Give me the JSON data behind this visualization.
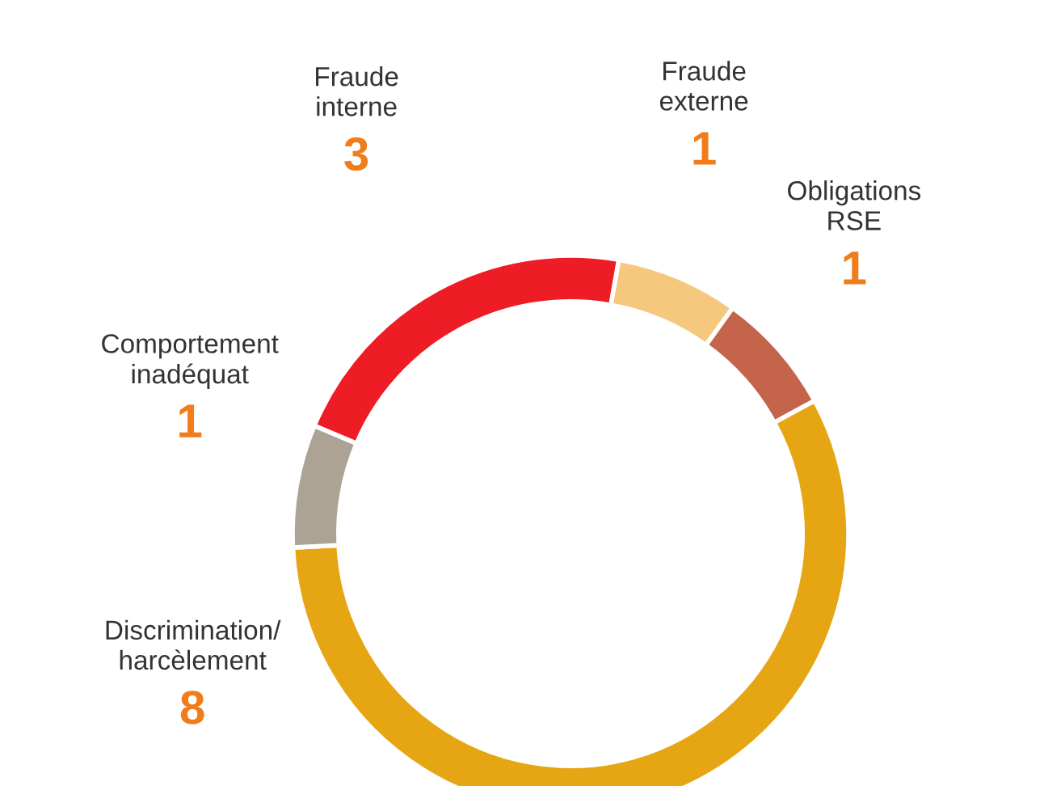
{
  "chart_data": {
    "type": "donut",
    "categories": [
      "Fraude externe",
      "Obligations RSE",
      "Discrimination/ harcèlement",
      "Comportement inadéquat",
      "Fraude interne"
    ],
    "values": [
      1,
      1,
      8,
      1,
      3
    ],
    "colors": [
      "#f5c87e",
      "#c4654b",
      "#e6a512",
      "#aca395",
      "#ee1c25"
    ],
    "data_labels": true
  }
}
